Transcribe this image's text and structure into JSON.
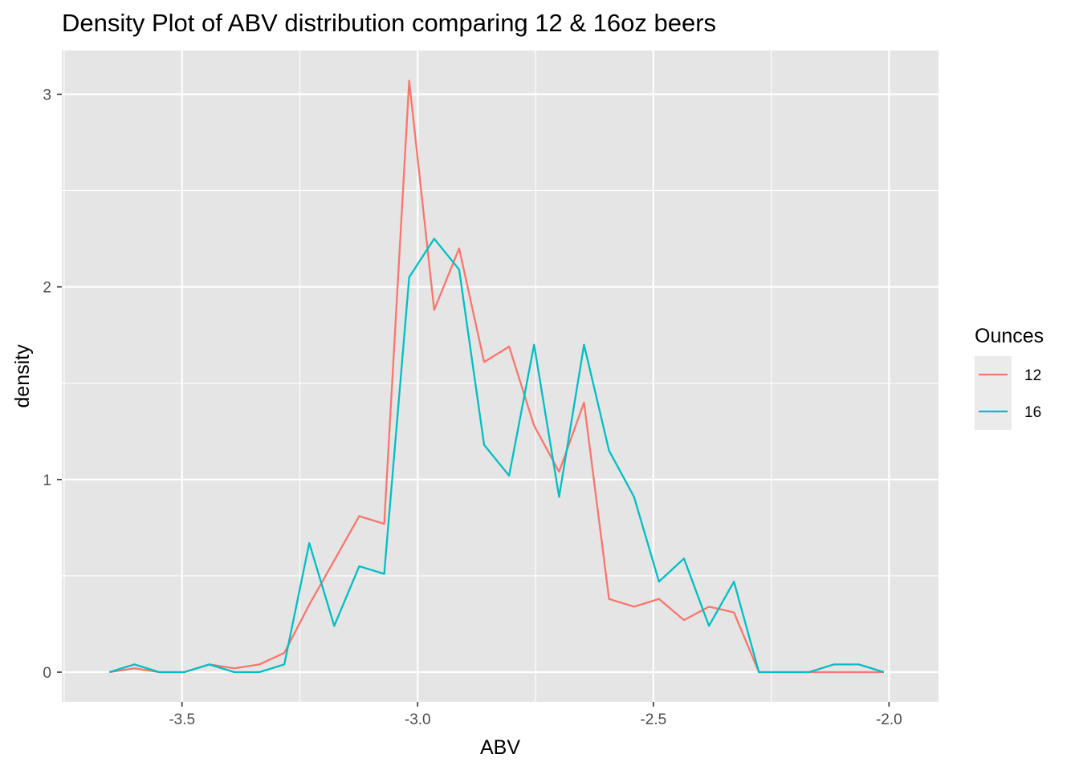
{
  "chart_data": {
    "type": "line",
    "title": "Density Plot of ABV distribution comparing 12 & 16oz beers",
    "xlabel": "ABV",
    "ylabel": "density",
    "xlim": [
      -3.755,
      -1.895
    ],
    "ylim": [
      -0.154,
      3.227
    ],
    "x_ticks": [
      -3.5,
      -3.0,
      -2.5,
      -2.0
    ],
    "x_tick_labels": [
      "-3.5",
      "-3.0",
      "-2.5",
      "-2.0"
    ],
    "y_ticks": [
      0,
      1,
      2,
      3
    ],
    "y_tick_labels": [
      "0",
      "1",
      "2",
      "3"
    ],
    "grid": true,
    "panel_background": "#e5e5e5",
    "legend": {
      "title": "Ounces",
      "position": "right",
      "entries": [
        "12",
        "16"
      ]
    },
    "x": [
      -3.654,
      -3.601,
      -3.548,
      -3.495,
      -3.442,
      -3.389,
      -3.336,
      -3.283,
      -3.23,
      -3.177,
      -3.124,
      -3.071,
      -3.018,
      -2.965,
      -2.912,
      -2.859,
      -2.806,
      -2.753,
      -2.7,
      -2.647,
      -2.594,
      -2.541,
      -2.488,
      -2.435,
      -2.382,
      -2.329,
      -2.276,
      -2.223,
      -2.17,
      -2.117,
      -2.064,
      -2.011
    ],
    "series": [
      {
        "name": "12",
        "color": "#f8766d",
        "values": [
          0.0,
          0.02,
          0.0,
          0.0,
          0.04,
          0.02,
          0.04,
          0.1,
          0.35,
          0.58,
          0.81,
          0.77,
          3.07,
          1.88,
          2.2,
          1.61,
          1.69,
          1.28,
          1.04,
          1.4,
          0.38,
          0.34,
          0.38,
          0.27,
          0.34,
          0.31,
          0.0,
          0.0,
          0.0,
          0.0,
          0.0,
          0.0
        ]
      },
      {
        "name": "16",
        "color": "#00bfc4",
        "values": [
          0.0,
          0.04,
          0.0,
          0.0,
          0.04,
          0.0,
          0.0,
          0.04,
          0.67,
          0.24,
          0.55,
          0.51,
          2.05,
          2.25,
          2.09,
          1.18,
          1.02,
          1.7,
          0.91,
          1.7,
          1.15,
          0.91,
          0.47,
          0.59,
          0.24,
          0.47,
          0.0,
          0.0,
          0.0,
          0.04,
          0.04,
          0.0
        ]
      }
    ]
  }
}
